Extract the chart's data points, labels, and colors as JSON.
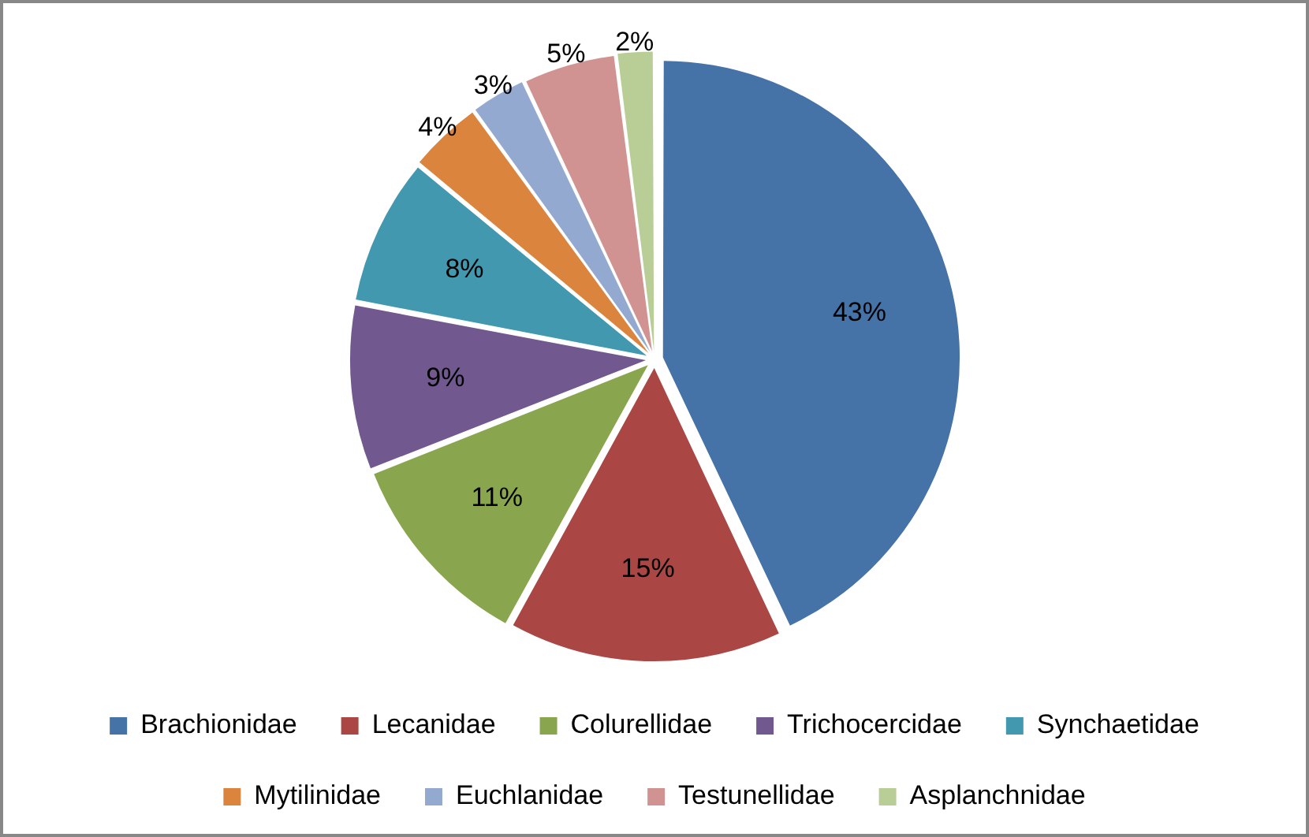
{
  "chart_data": {
    "type": "pie",
    "categories": [
      "Brachionidae",
      "Lecanidae",
      "Colurellidae",
      "Trichocercidae",
      "Synchaetidae",
      "Mytilinidae",
      "Euchlanidae",
      "Testunellidae",
      "Asplanchnidae"
    ],
    "values": [
      43,
      15,
      11,
      9,
      8,
      4,
      3,
      5,
      2
    ],
    "value_labels": [
      "43%",
      "15%",
      "11%",
      "9%",
      "8%",
      "4%",
      "3%",
      "5%",
      "2%"
    ],
    "colors": [
      "#4572a7",
      "#aa4643",
      "#89a54e",
      "#71588f",
      "#4198af",
      "#db843d",
      "#93a9cf",
      "#d19392",
      "#b9cd96"
    ],
    "legend": "bottom"
  }
}
